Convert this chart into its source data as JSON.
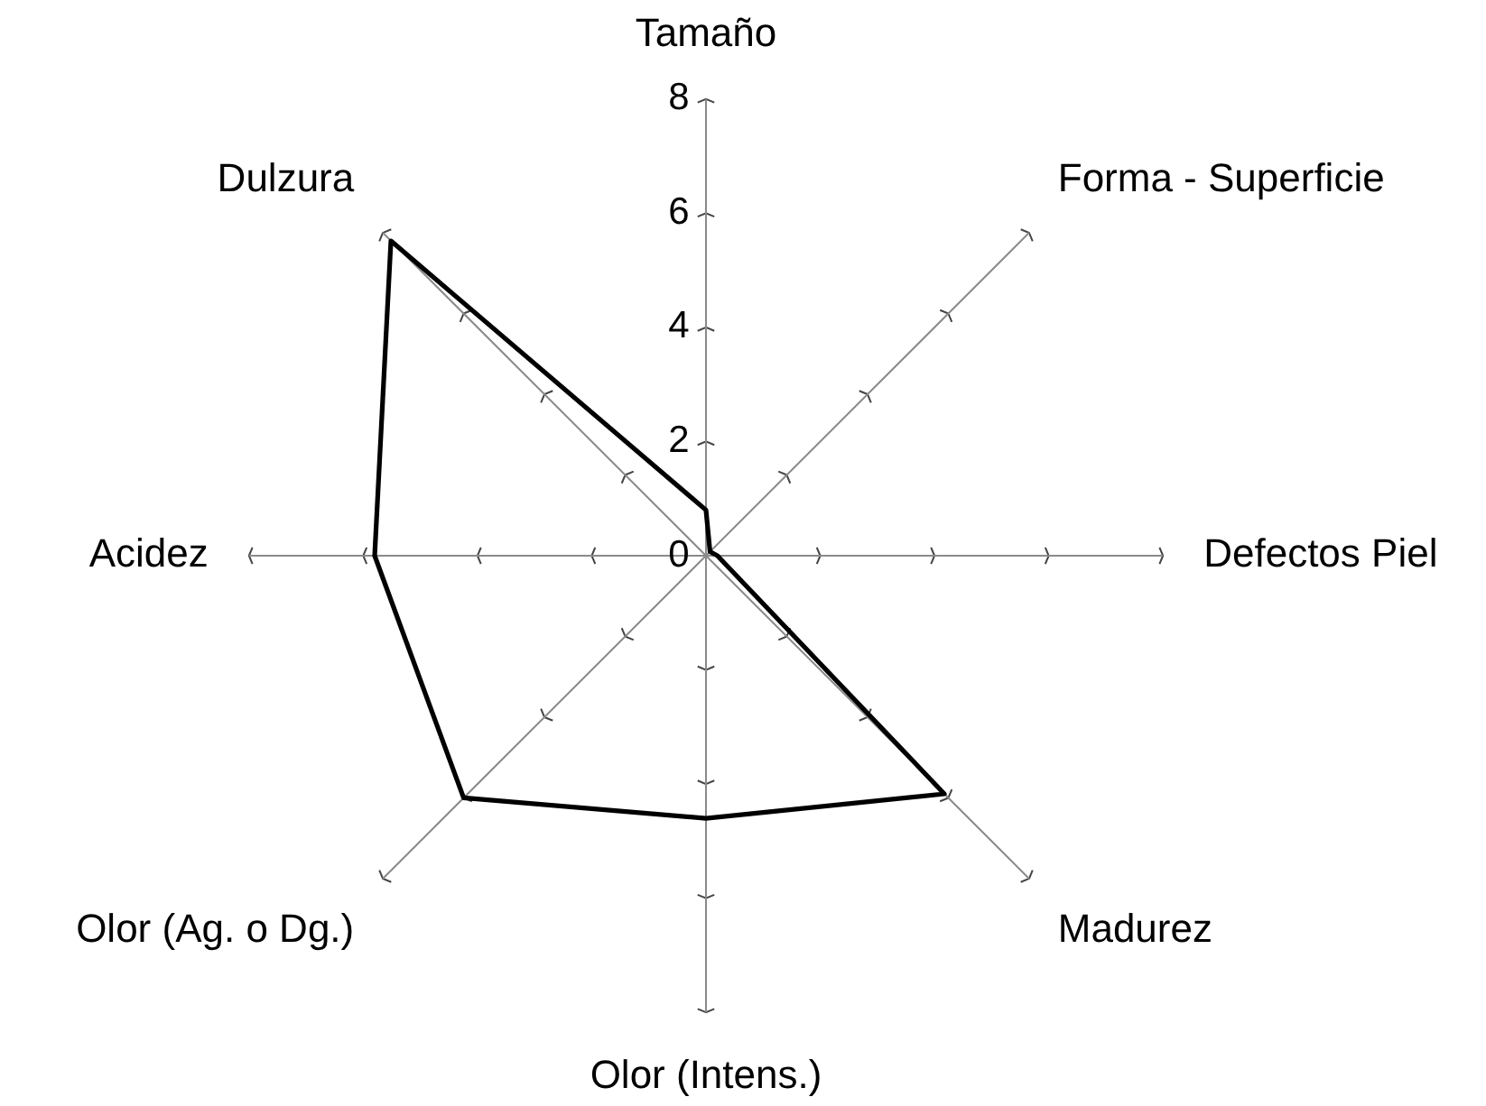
{
  "chart_data": {
    "type": "radar",
    "categories": [
      "Tamaño",
      "Forma - Superficie",
      "Defectos Piel",
      "Madurez",
      "Olor (Intens.)",
      "Olor (Ag. o Dg.)",
      "Acidez",
      "Dulzura"
    ],
    "series": [
      {
        "color": "#000000",
        "values": [
          0.8,
          0.1,
          0.2,
          5.9,
          4.6,
          6.0,
          5.8,
          7.8
        ]
      }
    ],
    "ylim": [
      0,
      8
    ],
    "yticks": [
      0,
      2,
      4,
      6,
      8
    ],
    "grid": false,
    "legend": false,
    "marker": "none",
    "line_style": "solid"
  }
}
